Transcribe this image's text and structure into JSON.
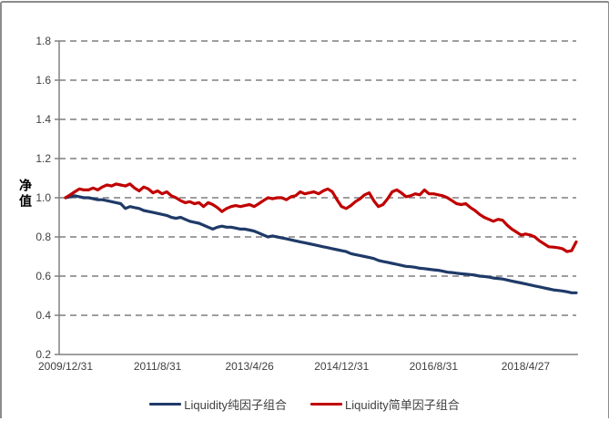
{
  "chart_data": {
    "type": "line",
    "title": "",
    "ylabel": "净值",
    "xlabel": "",
    "ylim": [
      0.2,
      1.8
    ],
    "ytick_step": 0.2,
    "ytick_labels": [
      "0.2",
      "0.4",
      "0.6",
      "0.8",
      "1.0",
      "1.2",
      "1.4",
      "1.6",
      "1.8"
    ],
    "x_tick_labels": [
      "2009/12/31",
      "2011/8/31",
      "2013/4/26",
      "2014/12/31",
      "2016/8/31",
      "2018/4/27"
    ],
    "x_tick_positions": [
      0,
      20,
      40,
      60,
      80,
      100
    ],
    "n_points": 112,
    "grid": "horizontal-dashed",
    "legend_position": "bottom",
    "axis_color": "#808080",
    "grid_color": "#7f7f7f",
    "series": [
      {
        "name": "Liquidity纯因子组合",
        "color": "#1f3a68",
        "values": [
          1.0,
          1.005,
          1.01,
          1.005,
          1.0,
          1.0,
          0.995,
          0.99,
          0.99,
          0.985,
          0.98,
          0.975,
          0.97,
          0.945,
          0.955,
          0.95,
          0.945,
          0.935,
          0.93,
          0.925,
          0.92,
          0.915,
          0.91,
          0.9,
          0.895,
          0.9,
          0.89,
          0.88,
          0.875,
          0.87,
          0.86,
          0.85,
          0.84,
          0.85,
          0.855,
          0.85,
          0.85,
          0.845,
          0.84,
          0.84,
          0.835,
          0.83,
          0.82,
          0.81,
          0.8,
          0.805,
          0.8,
          0.795,
          0.79,
          0.785,
          0.78,
          0.775,
          0.77,
          0.765,
          0.76,
          0.755,
          0.75,
          0.745,
          0.74,
          0.735,
          0.73,
          0.725,
          0.715,
          0.71,
          0.705,
          0.7,
          0.695,
          0.69,
          0.68,
          0.675,
          0.67,
          0.665,
          0.66,
          0.655,
          0.65,
          0.648,
          0.645,
          0.64,
          0.638,
          0.635,
          0.632,
          0.63,
          0.625,
          0.62,
          0.618,
          0.615,
          0.612,
          0.61,
          0.608,
          0.605,
          0.6,
          0.598,
          0.595,
          0.59,
          0.588,
          0.585,
          0.58,
          0.575,
          0.57,
          0.565,
          0.56,
          0.555,
          0.55,
          0.545,
          0.54,
          0.535,
          0.53,
          0.527,
          0.524,
          0.52,
          0.515,
          0.515
        ]
      },
      {
        "name": "Liquidity简单因子组合",
        "color": "#c00000",
        "values": [
          1.0,
          1.015,
          1.03,
          1.045,
          1.04,
          1.04,
          1.05,
          1.04,
          1.055,
          1.065,
          1.06,
          1.07,
          1.065,
          1.06,
          1.07,
          1.05,
          1.035,
          1.055,
          1.045,
          1.025,
          1.035,
          1.02,
          1.03,
          1.01,
          1.0,
          0.985,
          0.975,
          0.98,
          0.97,
          0.975,
          0.955,
          0.975,
          0.965,
          0.95,
          0.93,
          0.945,
          0.955,
          0.96,
          0.955,
          0.96,
          0.965,
          0.955,
          0.97,
          0.985,
          1.0,
          0.995,
          1.0,
          1.0,
          0.99,
          1.005,
          1.01,
          1.03,
          1.02,
          1.025,
          1.03,
          1.02,
          1.035,
          1.045,
          1.03,
          0.99,
          0.955,
          0.945,
          0.96,
          0.98,
          0.995,
          1.015,
          1.025,
          0.985,
          0.955,
          0.965,
          0.995,
          1.03,
          1.04,
          1.025,
          1.005,
          1.01,
          1.02,
          1.015,
          1.04,
          1.02,
          1.02,
          1.015,
          1.01,
          1.0,
          0.985,
          0.97,
          0.965,
          0.97,
          0.95,
          0.935,
          0.915,
          0.9,
          0.89,
          0.88,
          0.89,
          0.885,
          0.86,
          0.84,
          0.825,
          0.81,
          0.815,
          0.81,
          0.8,
          0.78,
          0.765,
          0.75,
          0.748,
          0.745,
          0.74,
          0.725,
          0.73,
          0.775
        ]
      }
    ]
  }
}
